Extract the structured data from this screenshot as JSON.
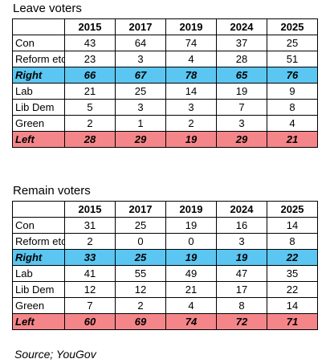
{
  "leave": {
    "title": "Leave voters",
    "years": [
      "2015",
      "2017",
      "2019",
      "2024",
      "2025"
    ],
    "rows": [
      {
        "label": "Con",
        "values": [
          "43",
          "64",
          "74",
          "37",
          "25"
        ]
      },
      {
        "label": "Reform etc",
        "values": [
          "23",
          "3",
          "4",
          "28",
          "51"
        ]
      },
      {
        "label": "Right",
        "values": [
          "66",
          "67",
          "78",
          "65",
          "76"
        ]
      },
      {
        "label": "Lab",
        "values": [
          "21",
          "25",
          "14",
          "19",
          "9"
        ]
      },
      {
        "label": "Lib Dem",
        "values": [
          "5",
          "3",
          "3",
          "7",
          "8"
        ]
      },
      {
        "label": "Green",
        "values": [
          "2",
          "1",
          "2",
          "3",
          "4"
        ]
      },
      {
        "label": "Left",
        "values": [
          "28",
          "29",
          "19",
          "29",
          "21"
        ]
      }
    ]
  },
  "remain": {
    "title": "Remain voters",
    "years": [
      "2015",
      "2017",
      "2019",
      "2024",
      "2025"
    ],
    "rows": [
      {
        "label": "Con",
        "values": [
          "31",
          "25",
          "19",
          "16",
          "14"
        ]
      },
      {
        "label": "Reform etc",
        "values": [
          "2",
          "0",
          "0",
          "3",
          "8"
        ]
      },
      {
        "label": "Right",
        "values": [
          "33",
          "25",
          "19",
          "19",
          "22"
        ]
      },
      {
        "label": "Lab",
        "values": [
          "41",
          "55",
          "49",
          "47",
          "35"
        ]
      },
      {
        "label": "Lib Dem",
        "values": [
          "12",
          "12",
          "21",
          "17",
          "22"
        ]
      },
      {
        "label": "Green",
        "values": [
          "7",
          "2",
          "4",
          "8",
          "14"
        ]
      },
      {
        "label": "Left",
        "values": [
          "60",
          "69",
          "74",
          "72",
          "71"
        ]
      }
    ]
  },
  "colors": {
    "right_row": "#5bc6f1",
    "left_row": "#f4868a"
  },
  "source": "Source; YouGov"
}
